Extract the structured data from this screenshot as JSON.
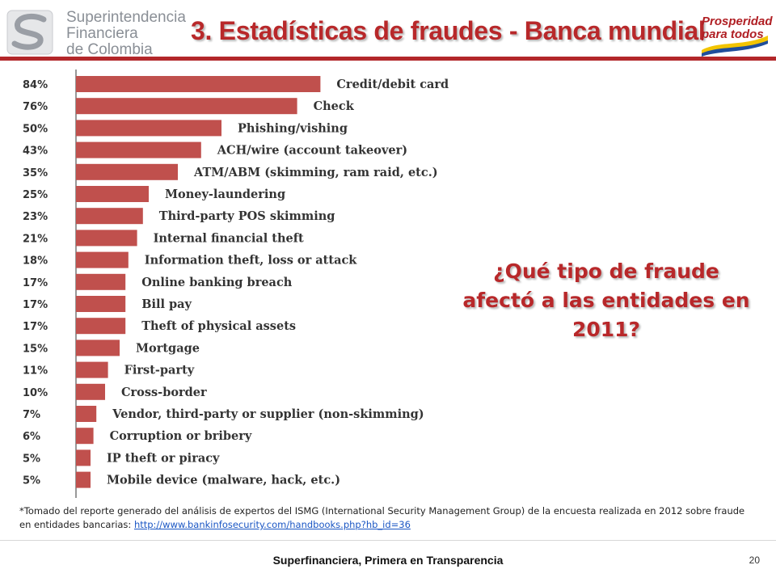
{
  "header": {
    "logo_left": {
      "lines": [
        "Superintendencia",
        "Financiera",
        "de Colombia"
      ],
      "icon": "superintendencia-logo-icon"
    },
    "title": "3. Estadísticas de fraudes - Banca mundial",
    "logo_right": {
      "lines": [
        "Prosperidad",
        "para todos"
      ],
      "icon": "prosperidad-logo-icon"
    },
    "accent_color": "#b3272a"
  },
  "chart_data": {
    "type": "bar",
    "orientation": "horizontal",
    "bar_color": "#c0504d",
    "categories": [
      "Credit/debit card",
      "Check",
      "Phishing/vishing",
      "ACH/wire (account takeover)",
      "ATM/ABM (skimming, ram raid, etc.)",
      "Money-laundering",
      "Third-party POS skimming",
      "Internal financial theft",
      "Information theft, loss or attack",
      "Online banking breach",
      "Bill pay",
      "Theft of physical assets",
      "Mortgage",
      "First-party",
      "Cross-border",
      "Vendor, third-party or supplier (non-skimming)",
      "Corruption or bribery",
      "IP theft or piracy",
      "Mobile device (malware, hack, etc.)"
    ],
    "values": [
      84,
      76,
      50,
      43,
      35,
      25,
      23,
      21,
      18,
      17,
      17,
      17,
      15,
      11,
      10,
      7,
      6,
      5,
      5
    ],
    "value_labels": [
      "84%",
      "76%",
      "50%",
      "43%",
      "35%",
      "25%",
      "23%",
      "21%",
      "18%",
      "17%",
      "17%",
      "17%",
      "15%",
      "11%",
      "10%",
      "7%",
      "6%",
      "5%",
      "5%"
    ],
    "xlim": [
      0,
      100
    ],
    "grid": false
  },
  "question": {
    "text": "¿Qué tipo de fraude afectó a las entidades en 2011?"
  },
  "footnote": {
    "text": "*Tomado del reporte generado del análisis de expertos del ISMG (International Security Management Group) de la encuesta realizada en 2012 sobre fraude en entidades bancarias: ",
    "link_text": "http://www.bankinfosecurity.com/handbooks.php?hb_id=36"
  },
  "footer": {
    "text": "Superfinanciera, Primera en Transparencia",
    "page_number": "20"
  }
}
